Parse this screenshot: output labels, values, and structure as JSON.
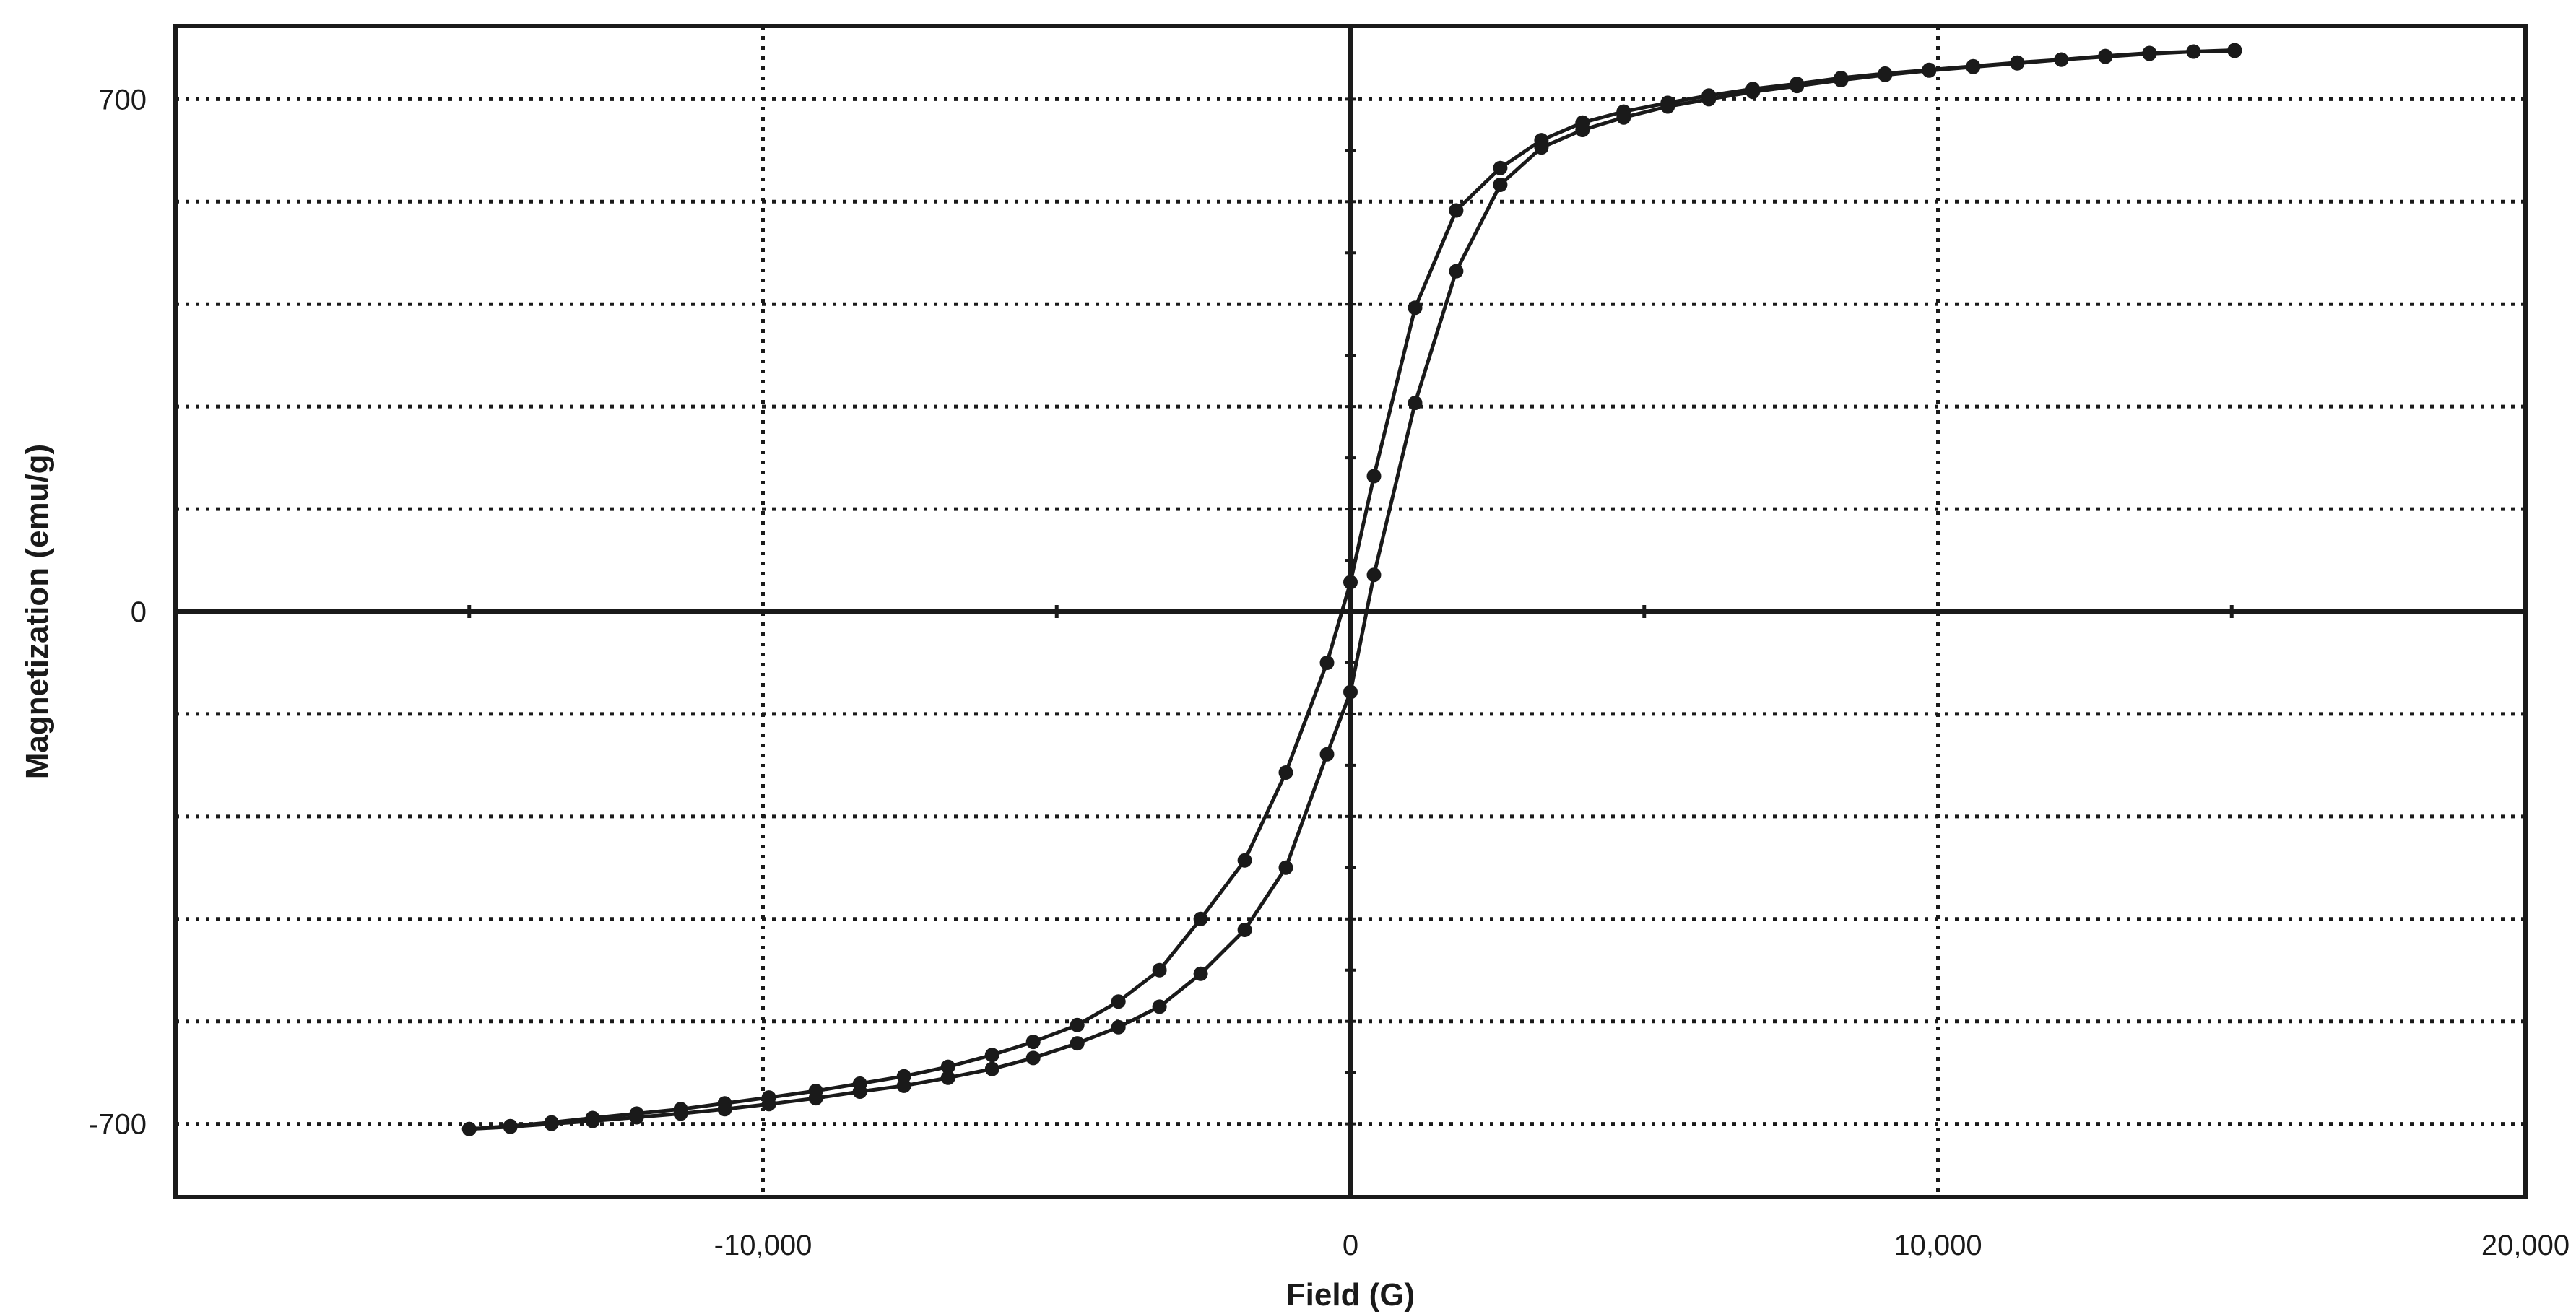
{
  "chart_data": {
    "type": "line",
    "title": "",
    "xlabel": "Field (G)",
    "ylabel": "Magnetization (emu/g)",
    "xlim": [
      -20000,
      20000
    ],
    "ylim": [
      -800,
      800
    ],
    "x_tick_labels": [
      {
        "value": -10000,
        "label": "-10,000"
      },
      {
        "value": 0,
        "label": "0"
      },
      {
        "value": 10000,
        "label": "10,000"
      },
      {
        "value": 20000,
        "label": "20,000"
      }
    ],
    "y_tick_labels": [
      {
        "value": 700,
        "label": "700"
      },
      {
        "value": 0,
        "label": "0"
      },
      {
        "value": -700,
        "label": "-700"
      }
    ],
    "grid": true,
    "gridlines_x": [
      -10000,
      10000
    ],
    "gridlines_y": [
      -700,
      -560,
      -420,
      -280,
      -140,
      140,
      280,
      420,
      560,
      700
    ],
    "legend": "none",
    "colors": {
      "line": "#1a1a1a",
      "grid": "#1a1a1a",
      "background": "#ffffff"
    },
    "series": [
      {
        "x": [
          -15000,
          -14300,
          -13600,
          -12900,
          -12150,
          -11400,
          -10650,
          -9900,
          -9100,
          -8350,
          -7600,
          -6850,
          -6100,
          -5400,
          -4650,
          -3950,
          -3250,
          -2550,
          -1800,
          -1100,
          -400,
          0,
          400,
          1100,
          1800,
          2550,
          3250,
          3950,
          4650,
          5400,
          6100,
          6850,
          7600,
          8350,
          9100,
          9850,
          10600,
          11350,
          12100,
          12850,
          13600,
          14350,
          15050
        ],
        "y": [
          -707,
          -703,
          -698,
          -692,
          -686,
          -680,
          -672,
          -664,
          -655,
          -645,
          -635,
          -622,
          -606,
          -588,
          -565,
          -533,
          -490,
          -420,
          -340,
          -220,
          -70,
          40,
          185,
          415,
          548,
          606,
          644,
          668,
          683,
          695,
          705,
          714,
          721,
          729,
          735,
          740,
          745,
          750,
          754,
          759,
          763,
          765,
          766
        ]
      },
      {
        "x": [
          -15000,
          -14300,
          -13600,
          -12900,
          -12150,
          -11400,
          -10650,
          -9900,
          -9100,
          -8350,
          -7600,
          -6850,
          -6100,
          -5400,
          -4650,
          -3950,
          -3250,
          -2550,
          -1800,
          -1100,
          -400,
          0,
          400,
          1100,
          1800,
          2550,
          3250,
          3950,
          4650,
          5400,
          6100,
          6850,
          7600,
          8350,
          9100,
          9850,
          10600,
          11350,
          12100,
          12850,
          13600,
          14350,
          15050
        ],
        "y": [
          -707,
          -704,
          -700,
          -696,
          -691,
          -686,
          -680,
          -673,
          -665,
          -656,
          -648,
          -637,
          -625,
          -610,
          -590,
          -568,
          -540,
          -495,
          -435,
          -350,
          -195,
          -110,
          50,
          285,
          465,
          583,
          634,
          658,
          675,
          690,
          700,
          710,
          718,
          726,
          733,
          739,
          744,
          749,
          754,
          758,
          762,
          765,
          767
        ]
      }
    ]
  }
}
